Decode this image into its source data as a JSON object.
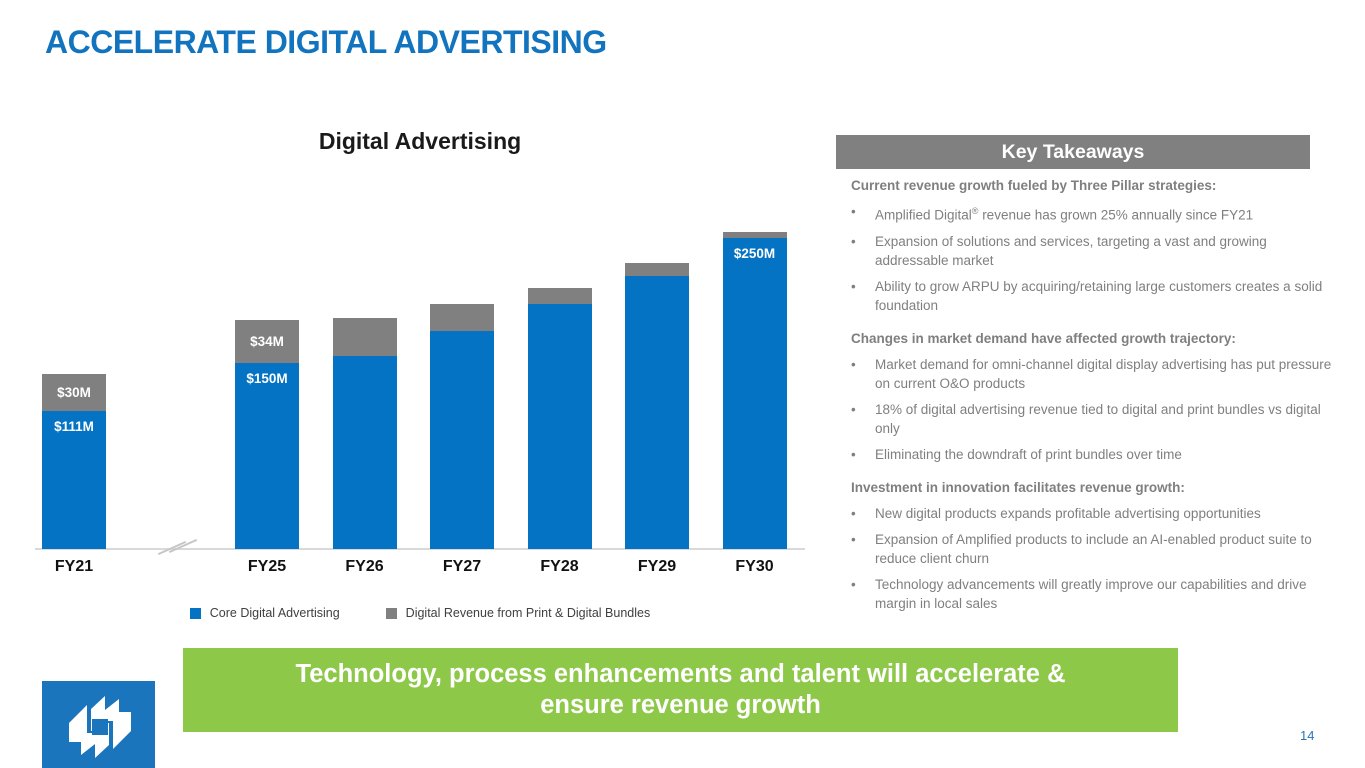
{
  "title": "ACCELERATE DIGITAL ADVERTISING",
  "page_number": "14",
  "colors": {
    "title_blue": "#1274BE",
    "bar_blue": "#0473C4",
    "bar_gray": "#808080",
    "banner_green": "#8DC849",
    "takeaway_text_gray": "#7F7F7F",
    "takeaway_header_gray": "#808080",
    "logo_blue": "#1B75BC",
    "page_number_blue": "#2E74B5"
  },
  "chart_data": {
    "type": "bar",
    "stacked": true,
    "title": "Digital Advertising",
    "unit": "$M",
    "categories": [
      "FY21",
      "FY25",
      "FY26",
      "FY27",
      "FY28",
      "FY29",
      "FY30"
    ],
    "axis_break_between": [
      "FY21",
      "FY25"
    ],
    "series": [
      {
        "name": "Core Digital Advertising",
        "color": "#0473C4",
        "values": [
          111,
          150,
          155,
          175,
          197,
          220,
          250
        ],
        "data_labels": [
          "$111M",
          "$150M",
          "",
          "",
          "",
          "",
          "$250M"
        ]
      },
      {
        "name": "Digital Revenue from Print & Digital Bundles",
        "color": "#808080",
        "values": [
          30,
          34,
          31,
          22,
          13,
          10,
          5
        ],
        "data_labels": [
          "$30M",
          "$34M",
          "",
          "",
          "",
          "",
          ""
        ]
      }
    ],
    "legend_position": "bottom",
    "grid": false,
    "value_axis_visible": false
  },
  "takeaways": {
    "header": "Key Takeaways",
    "sections": [
      {
        "header": "Current revenue growth fueled by Three Pillar strategies:",
        "bullets": [
          "Amplified Digital® revenue has grown 25% annually since FY21",
          "Expansion of solutions and services, targeting a vast and growing addressable market",
          "Ability to grow ARPU by acquiring/retaining large customers creates a solid foundation"
        ]
      },
      {
        "header": "Changes in market demand have affected growth trajectory:",
        "bullets": [
          "Market demand for omni-channel digital display advertising has put pressure on current O&O products",
          "18% of digital advertising revenue tied to digital and print bundles vs digital only",
          "Eliminating the downdraft of print bundles over time"
        ]
      },
      {
        "header": "Investment in innovation facilitates revenue growth:",
        "bullets": [
          "New digital products expands profitable advertising opportunities",
          "Expansion of Amplified products to include an AI-enabled product suite to reduce client churn",
          "Technology advancements will greatly improve our capabilities and drive margin in local sales"
        ]
      }
    ]
  },
  "banner": {
    "line1": "Technology, process enhancements and talent will accelerate &",
    "line2": "ensure revenue growth"
  }
}
